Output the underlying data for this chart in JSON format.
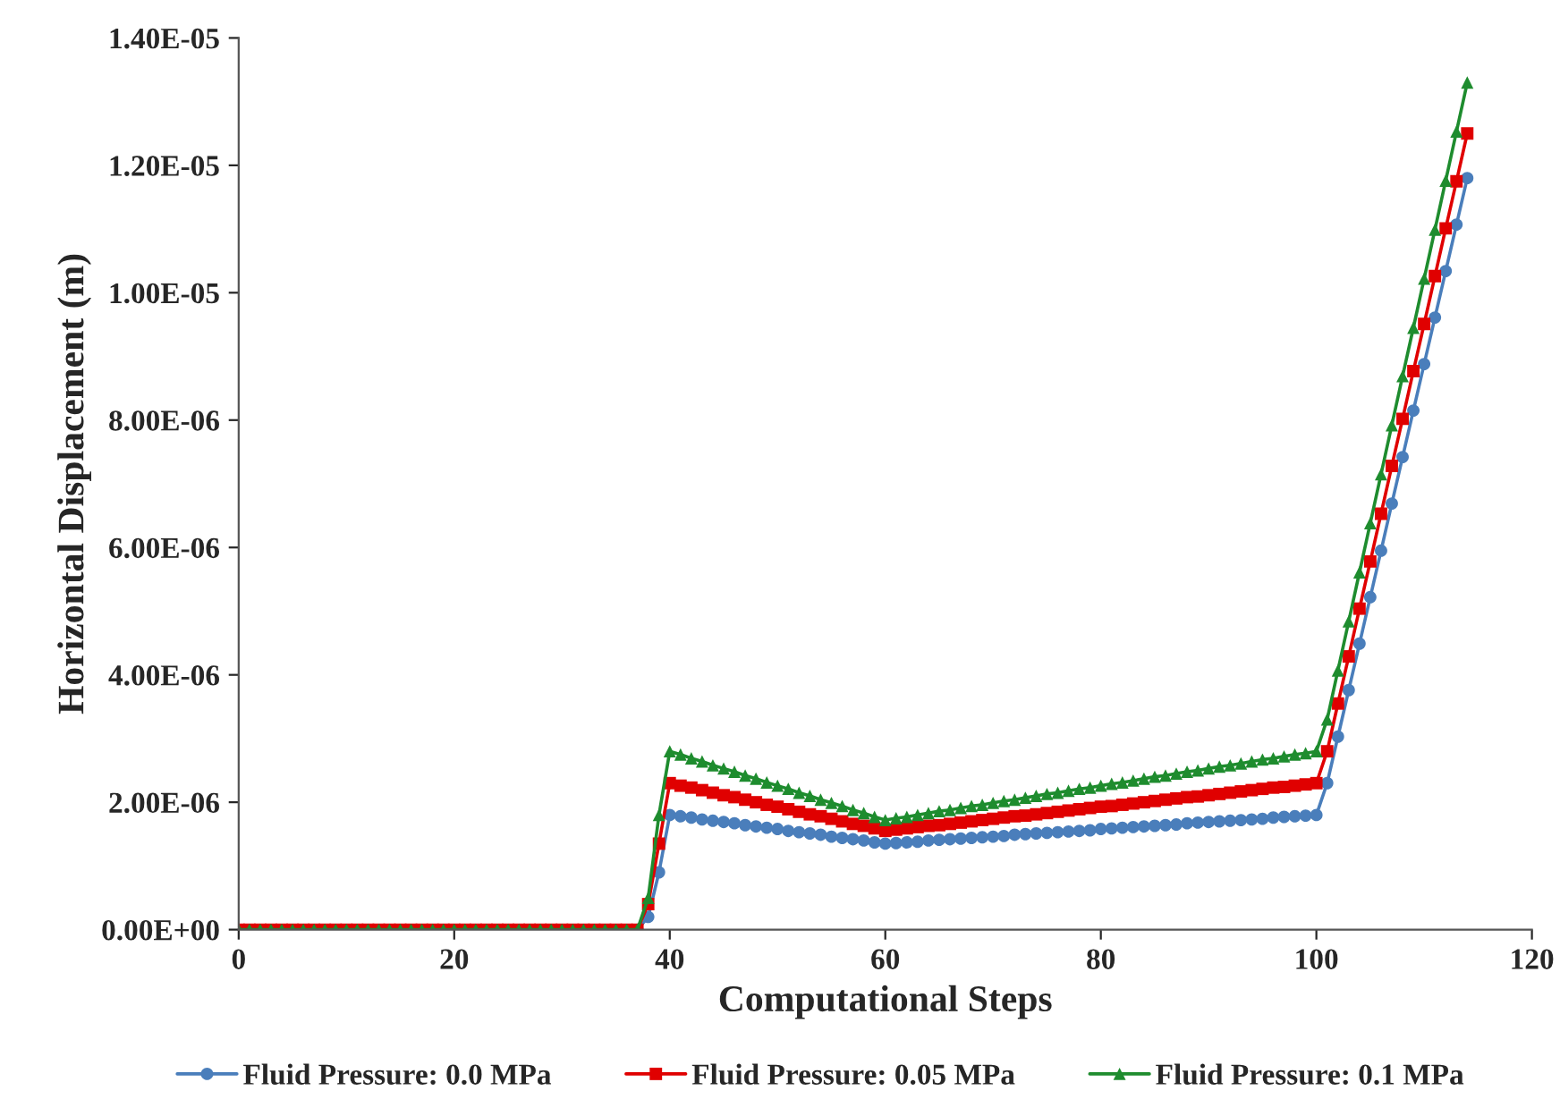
{
  "chart_data": {
    "type": "line",
    "xlabel": "Computational Steps",
    "ylabel": "Horizontal Displacement (m)",
    "x": [
      0,
      1,
      2,
      3,
      4,
      5,
      6,
      7,
      8,
      9,
      10,
      11,
      12,
      13,
      14,
      15,
      16,
      17,
      18,
      19,
      20,
      21,
      22,
      23,
      24,
      25,
      26,
      27,
      28,
      29,
      30,
      31,
      32,
      33,
      34,
      35,
      36,
      37,
      38,
      39,
      40,
      41,
      42,
      43,
      44,
      45,
      46,
      47,
      48,
      49,
      50,
      51,
      52,
      53,
      54,
      55,
      56,
      57,
      58,
      59,
      60,
      61,
      62,
      63,
      64,
      65,
      66,
      67,
      68,
      69,
      70,
      71,
      72,
      73,
      74,
      75,
      76,
      77,
      78,
      79,
      80,
      81,
      82,
      83,
      84,
      85,
      86,
      87,
      88,
      89,
      90,
      91,
      92,
      93,
      94,
      95,
      96,
      97,
      98,
      99,
      100,
      101,
      102,
      103,
      104,
      105,
      106,
      107,
      108,
      109,
      110,
      111,
      112,
      113,
      114
    ],
    "series": [
      {
        "name": "Fluid Pressure: 0.0 MPa",
        "color": "#4a7ebb",
        "marker": "circle",
        "values": [
          null,
          null,
          null,
          null,
          null,
          null,
          null,
          null,
          null,
          null,
          null,
          null,
          null,
          null,
          null,
          null,
          null,
          null,
          null,
          null,
          null,
          null,
          null,
          null,
          null,
          null,
          null,
          null,
          null,
          null,
          null,
          null,
          null,
          null,
          null,
          null,
          null,
          0,
          2e-07,
          9e-07,
          1.8e-06,
          1.78e-06,
          1.76e-06,
          1.73e-06,
          1.71e-06,
          1.69e-06,
          1.67e-06,
          1.64e-06,
          1.62e-06,
          1.6e-06,
          1.58e-06,
          1.55e-06,
          1.53e-06,
          1.51e-06,
          1.49e-06,
          1.46e-06,
          1.44e-06,
          1.42e-06,
          1.4e-06,
          1.37e-06,
          1.35e-06,
          1.36e-06,
          1.37e-06,
          1.38e-06,
          1.4e-06,
          1.41e-06,
          1.42e-06,
          1.43e-06,
          1.44e-06,
          1.45e-06,
          1.46e-06,
          1.47e-06,
          1.49e-06,
          1.5e-06,
          1.51e-06,
          1.52e-06,
          1.53e-06,
          1.54e-06,
          1.55e-06,
          1.56e-06,
          1.58e-06,
          1.59e-06,
          1.6e-06,
          1.61e-06,
          1.62e-06,
          1.63e-06,
          1.64e-06,
          1.65e-06,
          1.67e-06,
          1.68e-06,
          1.69e-06,
          1.7e-06,
          1.71e-06,
          1.72e-06,
          1.73e-06,
          1.74e-06,
          1.76e-06,
          1.77e-06,
          1.78e-06,
          1.79e-06,
          1.8e-06,
          2.3e-06,
          3.03e-06,
          3.76e-06,
          4.49e-06,
          5.22e-06,
          5.95e-06,
          6.69e-06,
          7.42e-06,
          8.15e-06,
          8.88e-06,
          9.61e-06,
          1.034e-05,
          1.107e-05,
          1.18e-05
        ]
      },
      {
        "name": "Fluid Pressure: 0.05 MPa",
        "color": "#e00000",
        "marker": "square",
        "values": [
          0,
          0,
          0,
          0,
          0,
          0,
          0,
          0,
          0,
          0,
          0,
          0,
          0,
          0,
          0,
          0,
          0,
          0,
          0,
          0,
          0,
          0,
          0,
          0,
          0,
          0,
          0,
          0,
          0,
          0,
          0,
          0,
          0,
          0,
          0,
          0,
          0,
          0,
          4e-07,
          1.35e-06,
          2.3e-06,
          2.26e-06,
          2.23e-06,
          2.19e-06,
          2.15e-06,
          2.11e-06,
          2.08e-06,
          2.04e-06,
          2e-06,
          1.96e-06,
          1.93e-06,
          1.89e-06,
          1.85e-06,
          1.81e-06,
          1.78e-06,
          1.74e-06,
          1.7e-06,
          1.66e-06,
          1.63e-06,
          1.59e-06,
          1.55e-06,
          1.57e-06,
          1.59e-06,
          1.61e-06,
          1.63e-06,
          1.64e-06,
          1.66e-06,
          1.68e-06,
          1.7e-06,
          1.72e-06,
          1.74e-06,
          1.76e-06,
          1.78e-06,
          1.79e-06,
          1.81e-06,
          1.83e-06,
          1.85e-06,
          1.87e-06,
          1.89e-06,
          1.91e-06,
          1.93e-06,
          1.94e-06,
          1.96e-06,
          1.98e-06,
          2e-06,
          2.02e-06,
          2.04e-06,
          2.06e-06,
          2.08e-06,
          2.09e-06,
          2.11e-06,
          2.13e-06,
          2.15e-06,
          2.17e-06,
          2.19e-06,
          2.21e-06,
          2.23e-06,
          2.24e-06,
          2.26e-06,
          2.28e-06,
          2.3e-06,
          2.8e-06,
          3.55e-06,
          4.29e-06,
          5.04e-06,
          5.78e-06,
          6.53e-06,
          7.28e-06,
          8.02e-06,
          8.77e-06,
          9.51e-06,
          1.026e-05,
          1.101e-05,
          1.175e-05,
          1.25e-05
        ]
      },
      {
        "name": "Fluid Pressure: 0.1 MPa",
        "color": "#1e8c2e",
        "marker": "triangle",
        "values": [
          0,
          0,
          0,
          0,
          0,
          0,
          0,
          0,
          0,
          0,
          0,
          0,
          0,
          0,
          0,
          0,
          0,
          0,
          0,
          0,
          0,
          0,
          0,
          0,
          0,
          0,
          0,
          0,
          0,
          0,
          0,
          0,
          0,
          0,
          0,
          0,
          0,
          0,
          5e-07,
          1.8e-06,
          2.8e-06,
          2.75e-06,
          2.69e-06,
          2.64e-06,
          2.58e-06,
          2.53e-06,
          2.48e-06,
          2.42e-06,
          2.37e-06,
          2.31e-06,
          2.26e-06,
          2.21e-06,
          2.15e-06,
          2.1e-06,
          2.04e-06,
          1.99e-06,
          1.94e-06,
          1.88e-06,
          1.83e-06,
          1.77e-06,
          1.72e-06,
          1.75e-06,
          1.77e-06,
          1.8e-06,
          1.83e-06,
          1.86e-06,
          1.88e-06,
          1.91e-06,
          1.94e-06,
          1.96e-06,
          1.99e-06,
          2.02e-06,
          2.04e-06,
          2.07e-06,
          2.1e-06,
          2.13e-06,
          2.15e-06,
          2.18e-06,
          2.21e-06,
          2.23e-06,
          2.26e-06,
          2.29e-06,
          2.31e-06,
          2.34e-06,
          2.37e-06,
          2.4e-06,
          2.42e-06,
          2.45e-06,
          2.48e-06,
          2.5e-06,
          2.53e-06,
          2.56e-06,
          2.58e-06,
          2.61e-06,
          2.64e-06,
          2.67e-06,
          2.69e-06,
          2.72e-06,
          2.75e-06,
          2.77e-06,
          2.8e-06,
          3.3e-06,
          4.07e-06,
          4.84e-06,
          5.61e-06,
          6.38e-06,
          7.15e-06,
          7.92e-06,
          8.69e-06,
          9.45e-06,
          1.022e-05,
          1.099e-05,
          1.176e-05,
          1.253e-05,
          1.33e-05
        ]
      }
    ],
    "xlim": [
      0,
      120
    ],
    "xticks": [
      0,
      20,
      40,
      60,
      80,
      100,
      120
    ],
    "ylim": [
      0,
      1.4e-05
    ],
    "yticks": [
      {
        "value": 0,
        "label": "0.00E+00"
      },
      {
        "value": 2e-06,
        "label": "2.00E-06"
      },
      {
        "value": 4e-06,
        "label": "4.00E-06"
      },
      {
        "value": 6e-06,
        "label": "6.00E-06"
      },
      {
        "value": 8e-06,
        "label": "8.00E-06"
      },
      {
        "value": 1e-05,
        "label": "1.00E-05"
      },
      {
        "value": 1.2e-05,
        "label": "1.20E-05"
      },
      {
        "value": 1.4e-05,
        "label": "1.40E-05"
      }
    ],
    "grid": false,
    "legend": "bottom",
    "line_style": "solid"
  }
}
